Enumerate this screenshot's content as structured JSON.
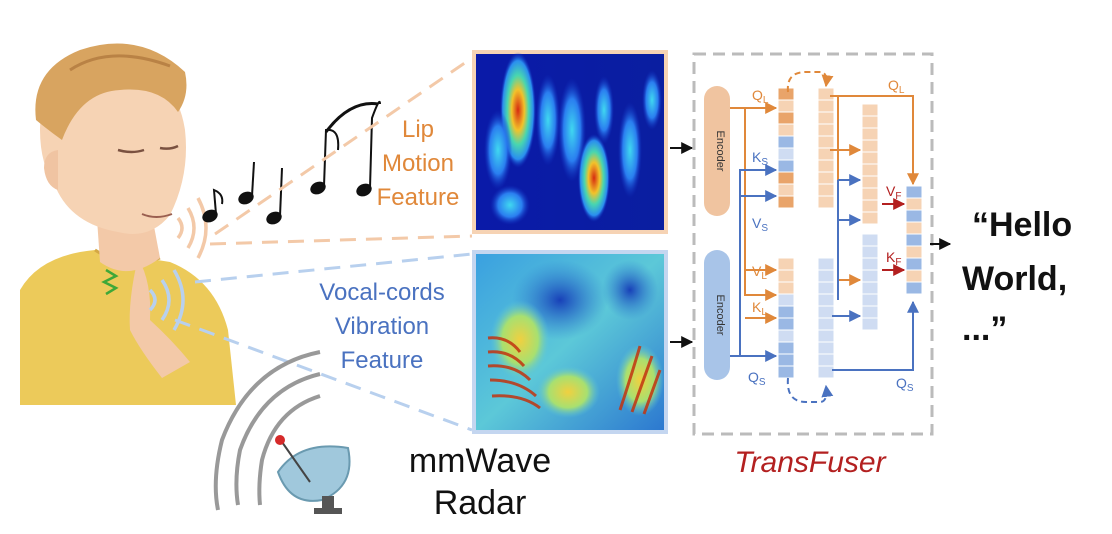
{
  "lip_feature": {
    "line1": "Lip",
    "line2": "Motion",
    "line3": "Feature"
  },
  "vocal_feature": {
    "line1": "Vocal-cords",
    "line2": "Vibration",
    "line3": "Feature"
  },
  "radar": {
    "line1": "mmWave",
    "line2": "Radar"
  },
  "transfuser": {
    "title": "TransFuser",
    "encoder_label": "Encoder",
    "tokens": {
      "q_l": "Q",
      "q_l_sub": "L",
      "k_s": "K",
      "k_s_sub": "S",
      "v_s": "V",
      "v_s_sub": "S",
      "v_l": "V",
      "v_l_sub": "L",
      "k_l": "K",
      "k_l_sub": "L",
      "q_s": "Q",
      "q_s_sub": "S",
      "q_l_out": "Q",
      "q_l_out_sub": "L",
      "v_f": "V",
      "v_f_sub": "F",
      "k_f": "K",
      "k_f_sub": "F",
      "q_s_out": "Q",
      "q_s_out_sub": "S"
    }
  },
  "output": {
    "line1": "“Hello",
    "line2": "World,",
    "line3": "...”"
  },
  "colors": {
    "orange": "#e0883a",
    "blue": "#4a72c0",
    "red": "#b32020",
    "dashed_border": "#bbbbbb"
  }
}
